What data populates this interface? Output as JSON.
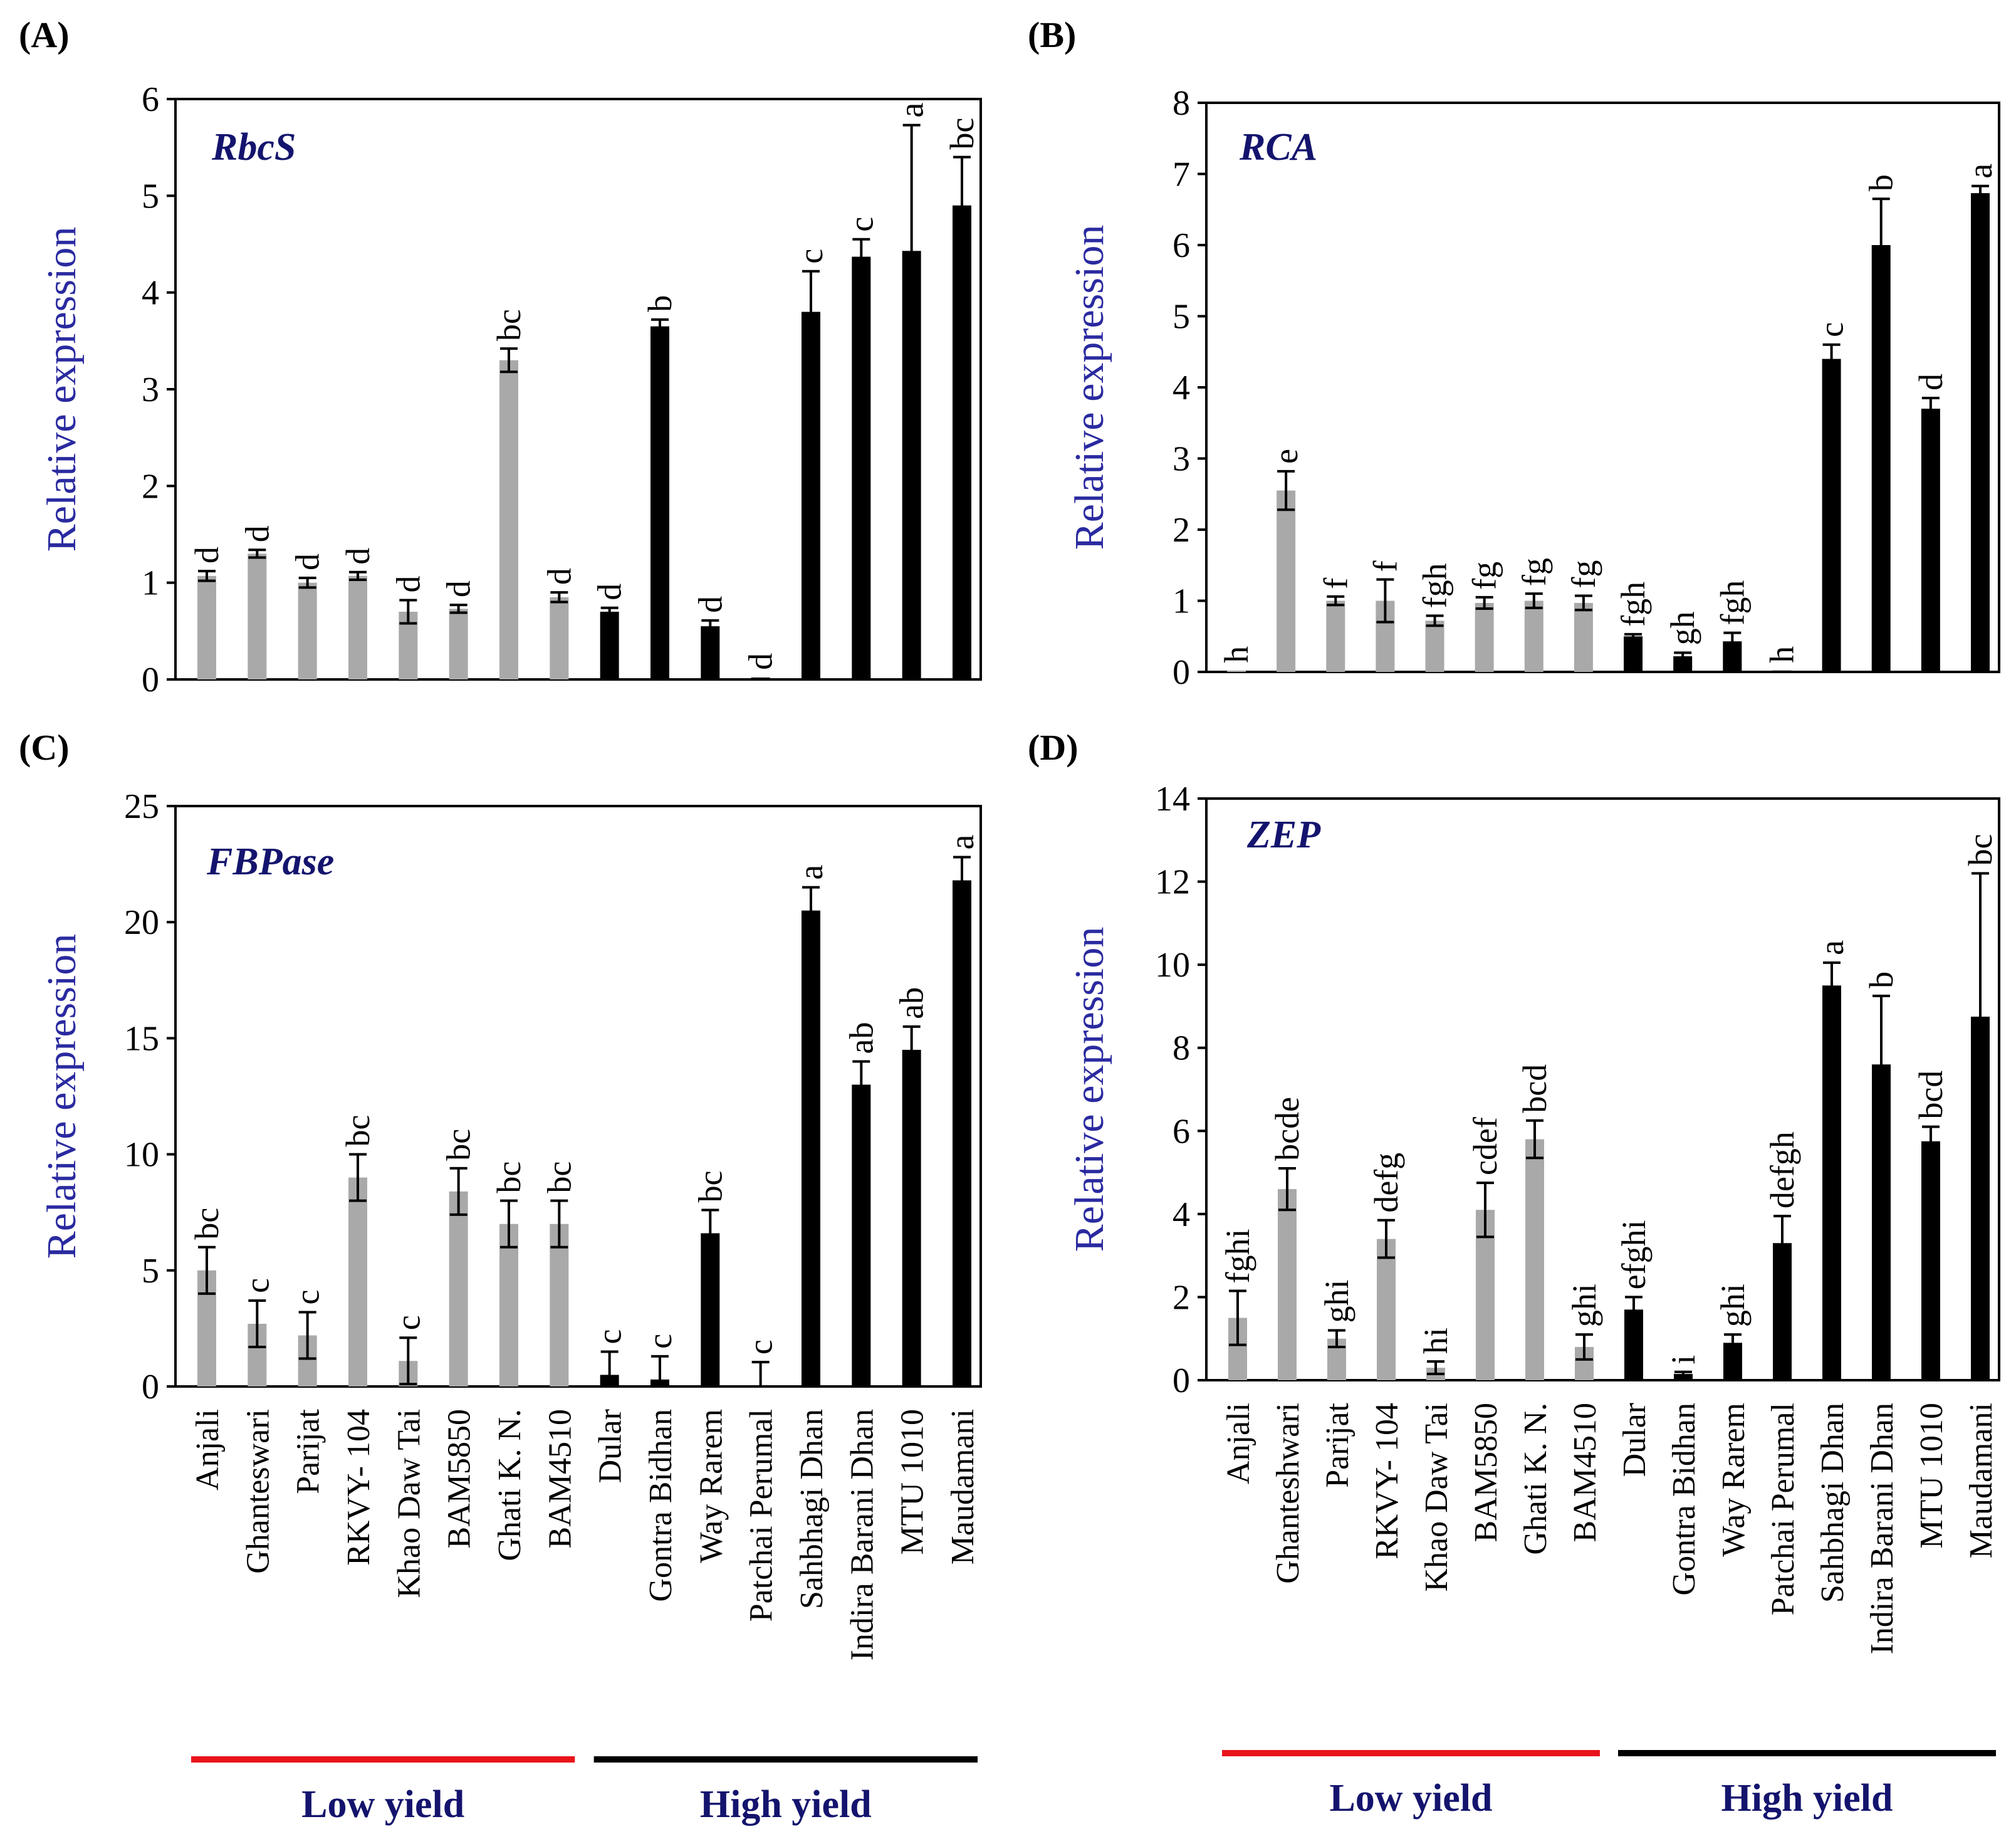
{
  "categories": [
    "Anjali",
    "Ghanteswari",
    "Parijat",
    "RKVY- 104",
    "Khao Daw Tai",
    "BAM5850",
    "Ghati K. N.",
    "BAM4510",
    "Dular",
    "Gontra Bidhan",
    "Way Rarem",
    "Patchai Perumal",
    "Sahbhagi Dhan",
    "Indira Barani Dhan",
    "MTU 1010",
    "Maudamani"
  ],
  "categories_D": [
    "Anjali",
    "Ghanteshwari",
    "Parijat",
    "RKVY- 104",
    "Khao Daw Tai",
    "BAM5850",
    "Ghati K. N.",
    "BAM4510",
    "Dular",
    "Gontra Bidhan",
    "Way Rarem",
    "Patchai Perumal",
    "Sahbhagi Dhan",
    "Indira Barani Dhan",
    "MTU 1010",
    "Maudamani"
  ],
  "groups": {
    "low": {
      "label": "Low yield",
      "color": "#e8141b"
    },
    "high": {
      "label": "High yield",
      "color": "#000000"
    }
  },
  "colors": {
    "low_bar": "#a9a9a9",
    "high_bar": "#000000",
    "axis_label": "#2a2aa0",
    "gene_label": "#14146e"
  },
  "chart_data": [
    {
      "panel": "(A)",
      "gene": "RbcS",
      "type": "bar",
      "ylabel": "Relative expression",
      "ylim": [
        0,
        6
      ],
      "yticks": [
        0,
        1,
        2,
        3,
        4,
        5,
        6
      ],
      "values": [
        1.07,
        1.3,
        1.0,
        1.07,
        0.7,
        0.73,
        3.3,
        0.85,
        0.7,
        3.65,
        0.55,
        0.02,
        3.8,
        4.37,
        4.43,
        4.9
      ],
      "errors": [
        0.05,
        0.04,
        0.05,
        0.04,
        0.12,
        0.04,
        0.12,
        0.05,
        0.04,
        0.07,
        0.06,
        0.0,
        0.42,
        0.18,
        1.3,
        0.5
      ],
      "letters": [
        "d",
        "d",
        "d",
        "d",
        "d",
        "d",
        "bc",
        "d",
        "d",
        "b",
        "d",
        "d",
        "c",
        "c",
        "a",
        "bc"
      ]
    },
    {
      "panel": "(B)",
      "gene": "RCA",
      "type": "bar",
      "ylabel": "Relative expression",
      "ylim": [
        0,
        8
      ],
      "yticks": [
        0,
        1,
        2,
        3,
        4,
        5,
        6,
        7,
        8
      ],
      "values": [
        0.02,
        2.55,
        1.0,
        1.0,
        0.72,
        0.97,
        1.0,
        0.97,
        0.5,
        0.22,
        0.43,
        0.02,
        4.4,
        6.0,
        3.7,
        6.73
      ],
      "errors": [
        0.0,
        0.27,
        0.06,
        0.3,
        0.07,
        0.08,
        0.1,
        0.1,
        0.03,
        0.05,
        0.12,
        0.0,
        0.2,
        0.65,
        0.15,
        0.1
      ],
      "letters": [
        "h",
        "e",
        "f",
        "f",
        "fgh",
        "fg",
        "fg",
        "fg",
        "fgh",
        "gh",
        "fgh",
        "h",
        "c",
        "b",
        "d",
        "a"
      ]
    },
    {
      "panel": "(C)",
      "gene": "FBPase",
      "type": "bar",
      "ylabel": "Relative expression",
      "ylim": [
        0,
        25
      ],
      "yticks": [
        0,
        5,
        10,
        15,
        20,
        25
      ],
      "values": [
        5.0,
        2.7,
        2.2,
        9.0,
        1.1,
        8.4,
        7.0,
        7.0,
        0.5,
        0.3,
        6.6,
        0.05,
        20.5,
        13.0,
        14.5,
        21.8
      ],
      "errors": [
        1.0,
        1.0,
        1.0,
        1.0,
        1.0,
        1.0,
        1.0,
        1.0,
        1.0,
        1.0,
        1.0,
        1.0,
        1.0,
        1.0,
        1.0,
        1.0
      ],
      "letters": [
        "bc",
        "c",
        "c",
        "bc",
        "c",
        "bc",
        "bc",
        "bc",
        "c",
        "c",
        "bc",
        "c",
        "a",
        "ab",
        "ab",
        "a"
      ]
    },
    {
      "panel": "(D)",
      "gene": "ZEP",
      "type": "bar",
      "ylabel": "Relative expression",
      "ylim": [
        0,
        14
      ],
      "yticks": [
        0,
        2,
        4,
        6,
        8,
        10,
        12,
        14
      ],
      "values": [
        1.5,
        4.6,
        1.0,
        3.4,
        0.3,
        4.1,
        5.8,
        0.8,
        1.7,
        0.15,
        0.9,
        3.3,
        9.5,
        7.6,
        5.75,
        8.75
      ],
      "errors": [
        0.65,
        0.5,
        0.2,
        0.45,
        0.15,
        0.65,
        0.45,
        0.3,
        0.3,
        0.05,
        0.2,
        0.65,
        0.55,
        1.65,
        0.35,
        3.45
      ],
      "letters": [
        "fghi",
        "bcde",
        "ghi",
        "defg",
        "hi",
        "cdef",
        "bcd",
        "ghi",
        "efghi",
        "i",
        "ghi",
        "defgh",
        "a",
        "b",
        "bcd",
        "bc"
      ]
    }
  ]
}
